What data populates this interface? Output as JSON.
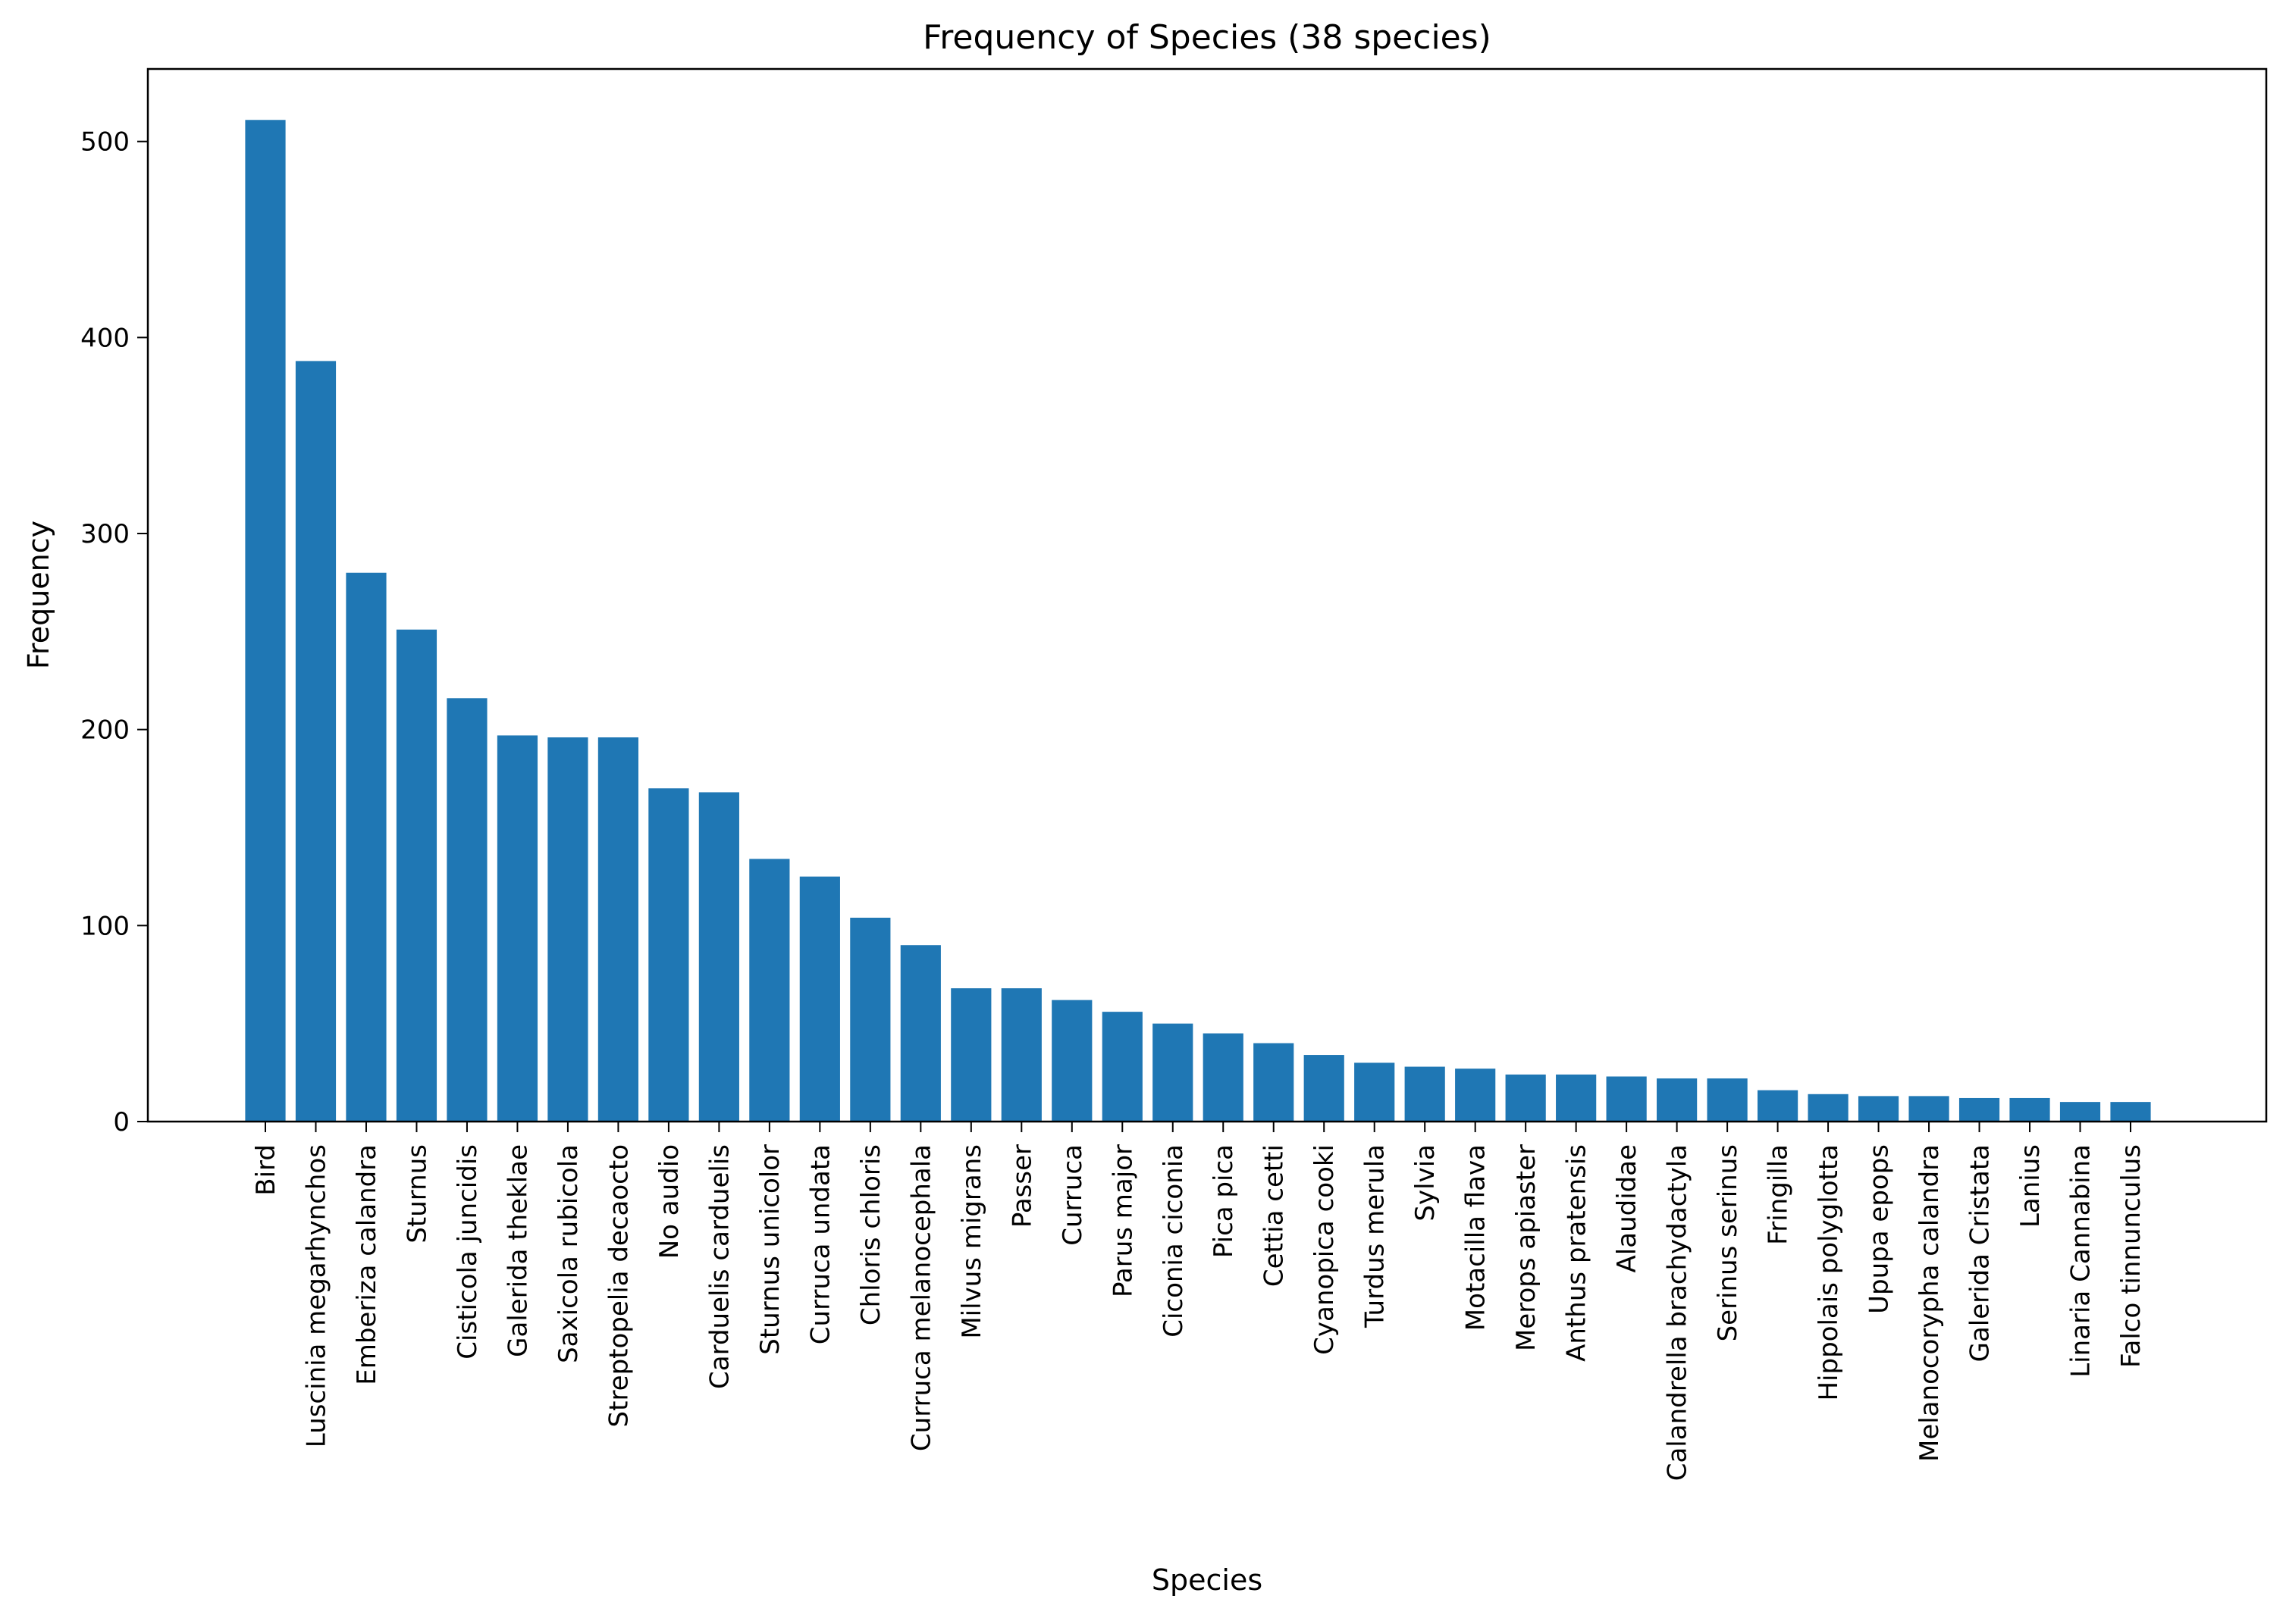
{
  "chart_data": {
    "type": "bar",
    "title": "Frequency of Species (38 species)",
    "xlabel": "Species",
    "ylabel": "Frequency",
    "ylim": [
      0,
      537
    ],
    "yticks": [
      0,
      100,
      200,
      300,
      400,
      500
    ],
    "bar_color": "#1f77b4",
    "grid": false,
    "legend": "none",
    "categories": [
      "Bird",
      "Luscinia megarhynchos",
      "Emberiza calandra",
      "Sturnus",
      "Cisticola juncidis",
      "Galerida theklae",
      "Saxicola rubicola",
      "Streptopelia decaocto",
      "No audio",
      "Carduelis carduelis",
      "Sturnus unicolor",
      "Curruca undata",
      "Chloris chloris",
      "Curruca melanocephala",
      "Milvus migrans",
      "Passer",
      "Curruca",
      "Parus major",
      "Ciconia ciconia",
      "Pica pica",
      "Cettia cetti",
      "Cyanopica cooki",
      "Turdus merula",
      "Sylvia",
      "Motacilla flava",
      "Merops apiaster",
      "Anthus pratensis",
      "Alaudidae",
      "Calandrella brachydactyla",
      "Serinus serinus",
      "Fringilla",
      "Hippolais polyglotta",
      "Upupa epops",
      "Melanocorypha calandra",
      "Galerida Cristata",
      "Lanius",
      "Linaria Cannabina",
      "Falco tinnunculus"
    ],
    "values": [
      511,
      388,
      280,
      251,
      216,
      197,
      196,
      196,
      170,
      168,
      134,
      125,
      104,
      90,
      68,
      68,
      62,
      56,
      50,
      45,
      40,
      34,
      30,
      28,
      27,
      24,
      24,
      23,
      22,
      22,
      16,
      14,
      13,
      13,
      12,
      12,
      10,
      10
    ]
  }
}
